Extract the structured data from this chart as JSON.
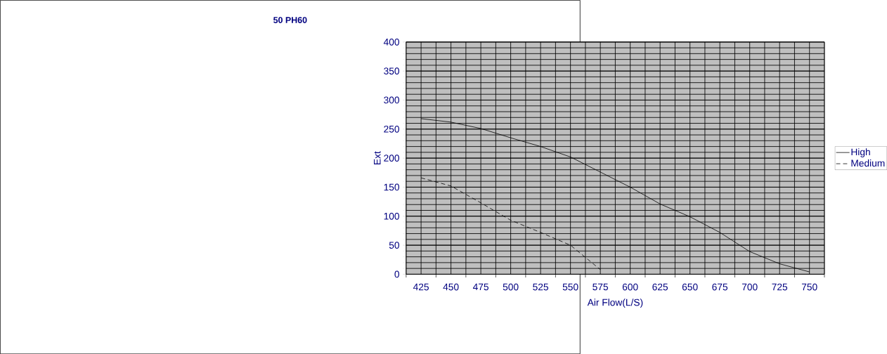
{
  "chart_data": {
    "type": "line",
    "title": "50 PH60",
    "xlabel": "Air Flow(L/S)",
    "ylabel": "Ext",
    "categories": [
      "425",
      "450",
      "475",
      "500",
      "525",
      "550",
      "575",
      "600",
      "625",
      "650",
      "675",
      "700",
      "725",
      "750"
    ],
    "series": [
      {
        "name": "High",
        "color": "#000000",
        "line_style": "solid",
        "values": [
          268,
          262,
          251,
          235,
          220,
          202,
          176,
          150,
          121,
          99,
          72,
          39,
          18,
          4
        ]
      },
      {
        "name": "Medium",
        "color": "#000000",
        "line_style": "dashed",
        "values": [
          166,
          152,
          123,
          93,
          72,
          50,
          8,
          null,
          null,
          null,
          null,
          null,
          null,
          null
        ]
      }
    ],
    "ylim": [
      0,
      400
    ],
    "yticks": [
      0,
      50,
      100,
      150,
      200,
      250,
      300,
      350,
      400
    ],
    "grid": true,
    "legend": "right",
    "marker": "none"
  }
}
